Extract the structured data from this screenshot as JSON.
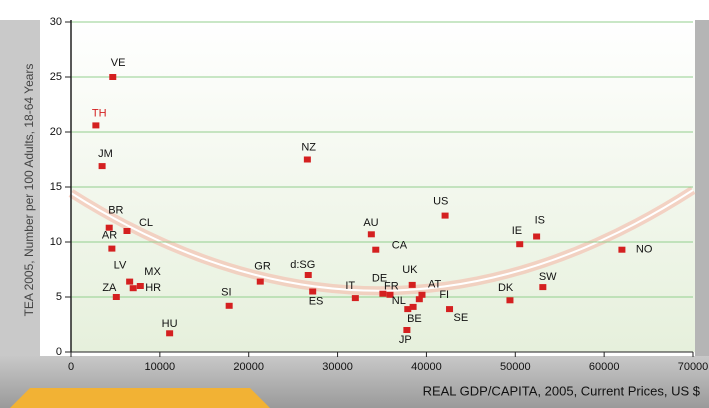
{
  "chart_data": {
    "type": "scatter",
    "x_label": "REAL GDP/CAPITA, 2005, Current Prices, US $",
    "y_label": "TEA 2005, Number per 100 Adults, 18-64 Years",
    "xlim": [
      0,
      70000
    ],
    "xticks": [
      0,
      10000,
      20000,
      30000,
      40000,
      50000,
      60000,
      70000
    ],
    "ylim": [
      0,
      30
    ],
    "yticks": [
      0,
      5,
      10,
      15,
      20,
      25,
      30
    ],
    "grid": true,
    "color": "#d42020",
    "highlight_color": "#d42020",
    "labels": [
      "VE",
      "TH",
      "JM",
      "NZ",
      "BR",
      "CL",
      "AR",
      "LV",
      "MX",
      "ZA",
      "HR",
      "HU",
      "SI",
      "GR",
      "d:SG",
      "ES",
      "IT",
      "AU",
      "CA",
      "DE",
      "FR",
      "UK",
      "NL",
      "BE",
      "JP",
      "AT",
      "FI",
      "SE",
      "US",
      "IE",
      "IS",
      "DK",
      "SW",
      "NO"
    ],
    "highlight": [
      "TH"
    ],
    "x": [
      4700,
      2800,
      3500,
      26600,
      4300,
      6300,
      4600,
      6600,
      7800,
      5100,
      7000,
      11100,
      17800,
      21300,
      26700,
      27200,
      32000,
      33800,
      34300,
      35100,
      35900,
      38400,
      37900,
      38500,
      37800,
      39500,
      39200,
      42600,
      42100,
      50500,
      52400,
      49400,
      53100,
      62000
    ],
    "values": [
      25,
      20.6,
      16.9,
      17.5,
      11.3,
      11,
      9.4,
      6.4,
      6,
      5,
      5.8,
      1.7,
      4.2,
      6.4,
      7,
      5.5,
      4.9,
      10.7,
      9.3,
      5.3,
      5.2,
      6.1,
      3.9,
      4.1,
      2,
      5.2,
      4.8,
      3.9,
      12.4,
      9.8,
      10.5,
      4.7,
      5.9,
      9.3
    ]
  }
}
